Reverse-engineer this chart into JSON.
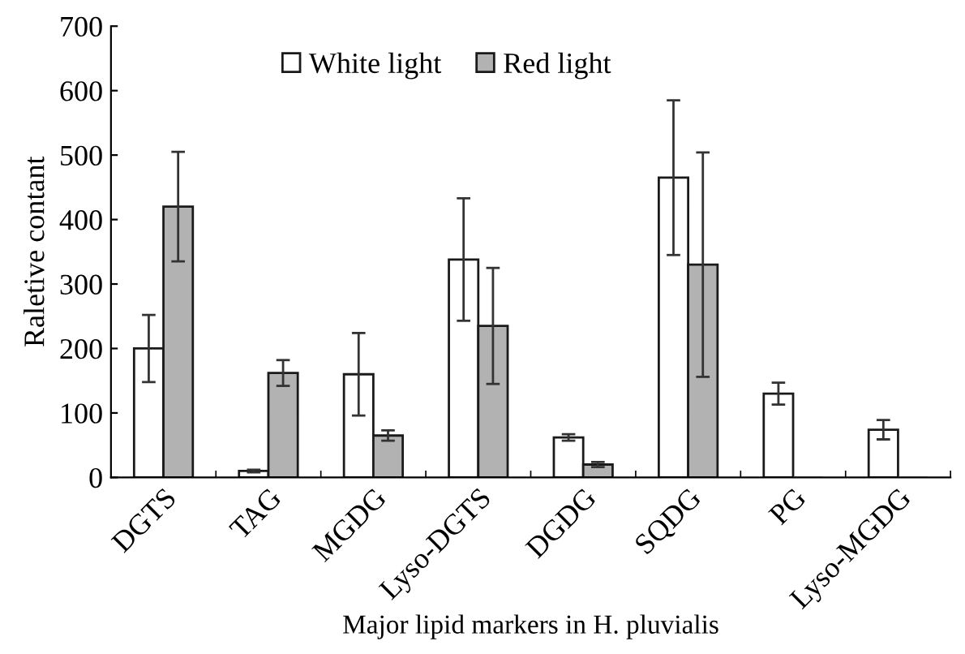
{
  "chart_data": {
    "type": "bar",
    "xlabel": "Major lipid markers in H. pluvialis",
    "ylabel": "Raletive contant",
    "categories": [
      "DGTS",
      "TAG",
      "MGDG",
      "Lyso-DGTS",
      "DGDG",
      "SQDG",
      "PG",
      "Lyso-MGDG"
    ],
    "series": [
      {
        "name": "White light",
        "color": "#ffffff",
        "values": [
          200,
          10,
          160,
          338,
          62,
          465,
          130,
          74
        ],
        "errors": [
          52,
          2,
          64,
          95,
          5,
          120,
          17,
          15
        ]
      },
      {
        "name": "Red light",
        "color": "#b2b2b2",
        "values": [
          420,
          162,
          65,
          235,
          20,
          330,
          0,
          0
        ],
        "errors": [
          85,
          20,
          8,
          90,
          4,
          174,
          null,
          null
        ]
      }
    ],
    "ylim": [
      0,
      700
    ],
    "yticks": [
      0,
      100,
      200,
      300,
      400,
      500,
      600,
      700
    ],
    "legend": "top",
    "grid": false
  }
}
